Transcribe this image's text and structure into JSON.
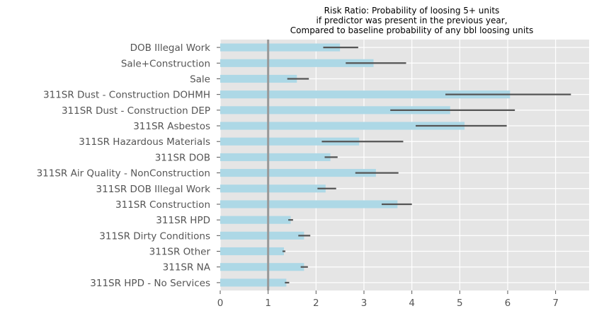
{
  "chart_data": {
    "type": "bar",
    "orientation": "horizontal",
    "title": [
      "Risk Ratio: Probability of loosing 5+ units",
      "if predictor was present in the previous year,",
      "Compared to baseline probability of any bbl loosing units"
    ],
    "xlabel": "",
    "ylabel": "",
    "xlim": [
      0,
      7.7
    ],
    "xticks": [
      0,
      1,
      2,
      3,
      4,
      5,
      6,
      7
    ],
    "reference_line": 1,
    "grid": true,
    "colors": {
      "background": "#e5e5e5",
      "grid": "#ffffff",
      "bar": "#add8e6",
      "errorbar": "#555555",
      "reference_line": "#999999",
      "text": "#555555"
    },
    "categories": [
      "DOB Illegal Work",
      "Sale+Construction",
      "Sale",
      "311SR Dust - Construction DOHMH",
      "311SR Dust - Construction DEP",
      "311SR Asbestos",
      "311SR Hazardous Materials",
      "311SR DOB",
      "311SR Air Quality - NonConstruction",
      "311SR DOB Illegal Work",
      "311SR Construction",
      "311SR HPD",
      "311SR Dirty Conditions",
      "311SR Other",
      "311SR NA",
      "311SR HPD - No Services"
    ],
    "values": [
      2.5,
      3.2,
      1.6,
      6.05,
      4.8,
      5.1,
      2.9,
      2.3,
      3.25,
      2.2,
      3.7,
      1.47,
      1.75,
      1.33,
      1.75,
      1.38
    ],
    "error_low": [
      2.15,
      2.62,
      1.4,
      4.7,
      3.55,
      4.08,
      2.12,
      2.18,
      2.82,
      2.03,
      3.37,
      1.42,
      1.63,
      1.3,
      1.68,
      1.35
    ],
    "error_high": [
      2.88,
      3.88,
      1.85,
      7.32,
      6.15,
      5.98,
      3.82,
      2.45,
      3.72,
      2.42,
      4.0,
      1.52,
      1.88,
      1.36,
      1.83,
      1.44
    ]
  }
}
